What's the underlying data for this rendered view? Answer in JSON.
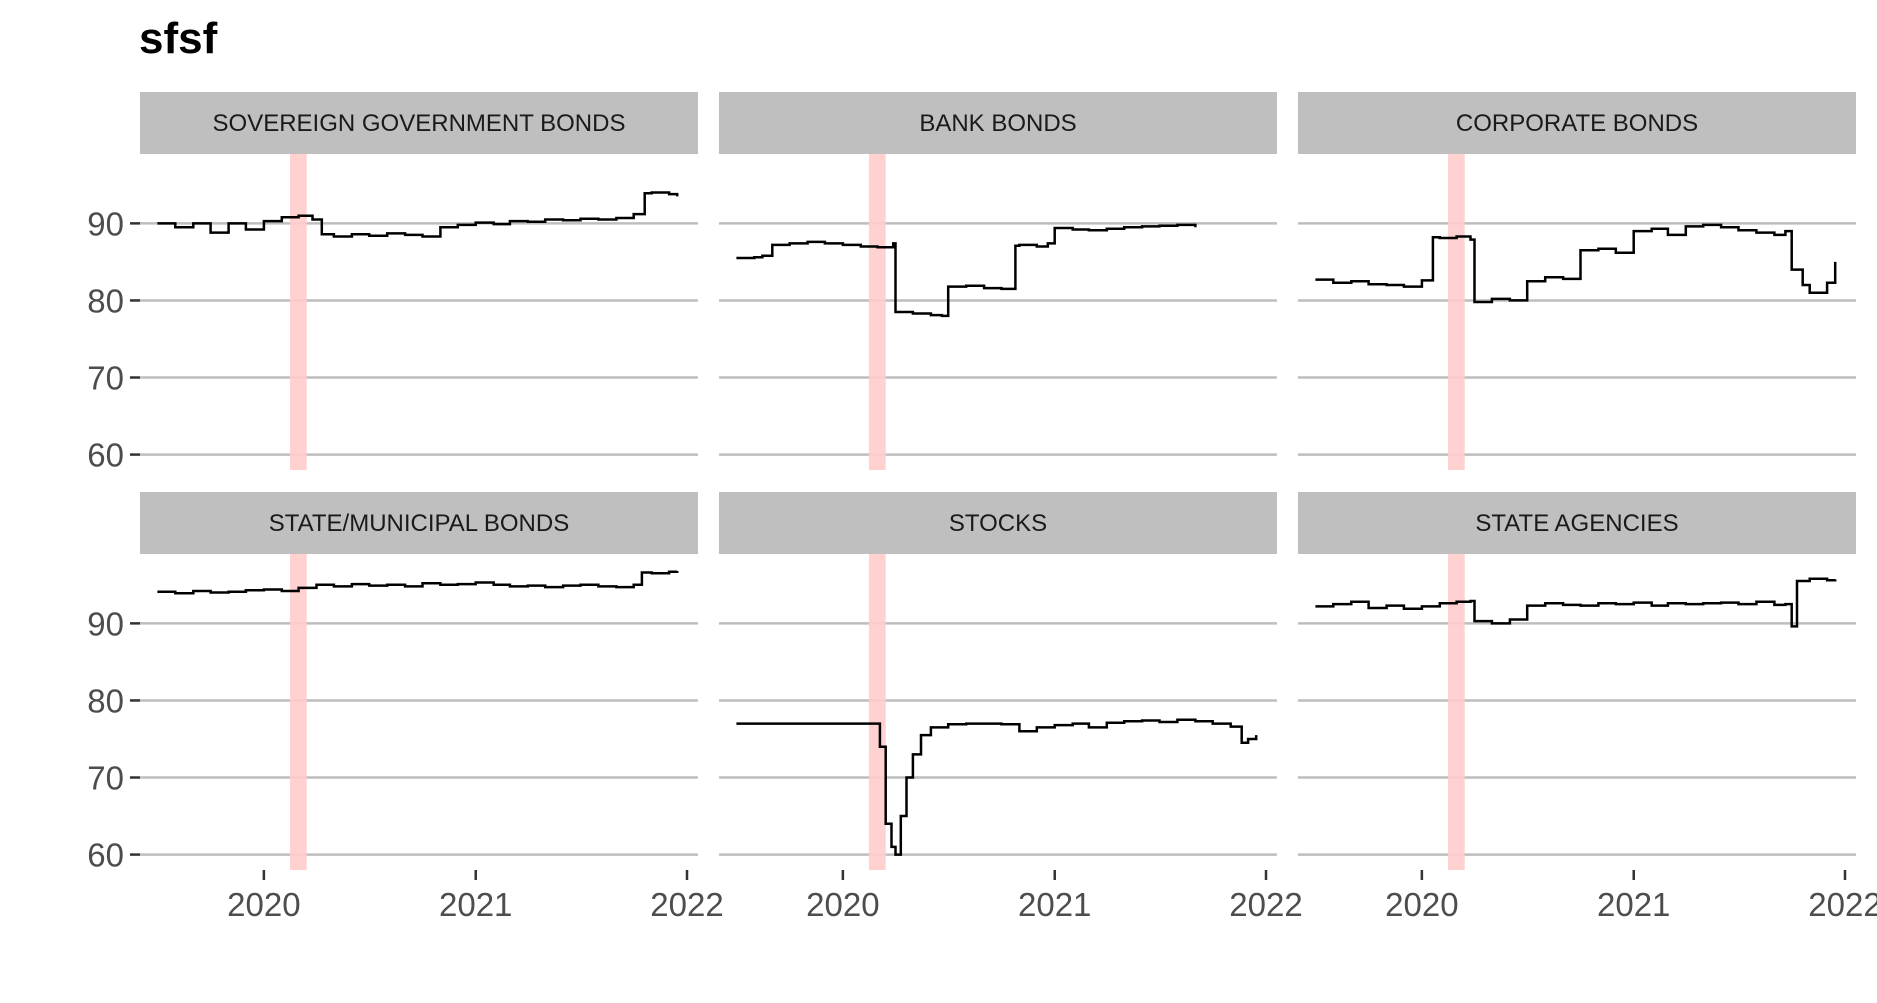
{
  "chart_data": {
    "type": "line",
    "title": "sfsf",
    "xlabel": "",
    "ylabel": "",
    "ylim": [
      58,
      99
    ],
    "xlim": [
      "2019-06-01",
      "2022-01-20"
    ],
    "y_ticks": [
      60,
      70,
      80,
      90
    ],
    "x_ticks": [
      "2020",
      "2021",
      "2022"
    ],
    "grid": "horizontal major gridlines",
    "highlight_band": {
      "from": "2020-02-15",
      "to": "2020-03-15",
      "color": "#ffcccc"
    },
    "line_color": "#000000",
    "strip_color": "#bfbfbf",
    "panels": [
      {
        "name": "SOVEREIGN GOVERNMENT BONDS",
        "x": [
          "2019-07-01",
          "2019-08-01",
          "2019-09-01",
          "2019-10-01",
          "2019-11-01",
          "2019-12-01",
          "2020-01-01",
          "2020-02-01",
          "2020-03-01",
          "2020-03-25",
          "2020-04-10",
          "2020-05-01",
          "2020-06-01",
          "2020-07-01",
          "2020-08-01",
          "2020-09-01",
          "2020-10-01",
          "2020-11-01",
          "2020-12-01",
          "2021-01-01",
          "2021-02-01",
          "2021-03-01",
          "2021-04-01",
          "2021-05-01",
          "2021-06-01",
          "2021-07-01",
          "2021-08-01",
          "2021-09-01",
          "2021-10-01",
          "2021-10-20",
          "2021-11-01",
          "2021-12-01",
          "2021-12-15"
        ],
        "y": [
          90.0,
          89.5,
          90.0,
          88.8,
          90.0,
          89.2,
          90.3,
          90.8,
          91.0,
          90.5,
          88.6,
          88.3,
          88.6,
          88.4,
          88.7,
          88.5,
          88.3,
          89.5,
          89.8,
          90.1,
          89.9,
          90.3,
          90.2,
          90.5,
          90.4,
          90.6,
          90.5,
          90.7,
          91.2,
          93.9,
          94.0,
          93.8,
          93.5
        ]
      },
      {
        "name": "BANK BONDS",
        "x": [
          "2019-07-01",
          "2019-08-01",
          "2019-08-15",
          "2019-09-01",
          "2019-10-01",
          "2019-11-01",
          "2019-12-01",
          "2020-01-01",
          "2020-02-01",
          "2020-03-01",
          "2020-03-28",
          "2020-04-01",
          "2020-05-01",
          "2020-06-01",
          "2020-06-20",
          "2020-07-01",
          "2020-08-01",
          "2020-09-01",
          "2020-10-01",
          "2020-10-25",
          "2020-11-01",
          "2020-12-01",
          "2020-12-20",
          "2021-01-01",
          "2021-02-01",
          "2021-03-01",
          "2021-04-01",
          "2021-05-01",
          "2021-06-01",
          "2021-07-01",
          "2021-08-01",
          "2021-09-01"
        ],
        "y": [
          85.5,
          85.6,
          85.8,
          87.2,
          87.4,
          87.6,
          87.4,
          87.2,
          87.0,
          86.9,
          87.4,
          78.5,
          78.3,
          78.1,
          78.0,
          81.8,
          81.9,
          81.6,
          81.5,
          87.1,
          87.2,
          87.0,
          87.4,
          89.4,
          89.2,
          89.1,
          89.3,
          89.5,
          89.6,
          89.7,
          89.8,
          89.5
        ]
      },
      {
        "name": "CORPORATE BONDS",
        "x": [
          "2019-07-01",
          "2019-08-01",
          "2019-09-01",
          "2019-10-01",
          "2019-11-01",
          "2019-12-01",
          "2020-01-01",
          "2020-01-20",
          "2020-02-01",
          "2020-03-01",
          "2020-03-25",
          "2020-04-01",
          "2020-05-01",
          "2020-06-01",
          "2020-07-01",
          "2020-08-01",
          "2020-09-01",
          "2020-10-01",
          "2020-11-01",
          "2020-12-01",
          "2021-01-01",
          "2021-02-01",
          "2021-03-01",
          "2021-04-01",
          "2021-05-01",
          "2021-06-01",
          "2021-07-01",
          "2021-08-01",
          "2021-09-01",
          "2021-09-20",
          "2021-10-01",
          "2021-10-20",
          "2021-11-01",
          "2021-12-01",
          "2021-12-15"
        ],
        "y": [
          82.7,
          82.3,
          82.5,
          82.1,
          82.0,
          81.8,
          82.6,
          88.2,
          88.1,
          88.3,
          87.9,
          79.8,
          80.2,
          80.0,
          82.5,
          83.0,
          82.8,
          86.5,
          86.7,
          86.2,
          89.0,
          89.3,
          88.5,
          89.6,
          89.8,
          89.5,
          89.1,
          88.8,
          88.5,
          89.0,
          84.0,
          82.0,
          81.0,
          82.3,
          85.0
        ]
      },
      {
        "name": "STATE/MUNICIPAL BONDS",
        "x": [
          "2019-07-01",
          "2019-08-01",
          "2019-09-01",
          "2019-10-01",
          "2019-11-01",
          "2019-12-01",
          "2020-01-01",
          "2020-02-01",
          "2020-03-01",
          "2020-04-01",
          "2020-05-01",
          "2020-06-01",
          "2020-07-01",
          "2020-08-01",
          "2020-09-01",
          "2020-10-01",
          "2020-11-01",
          "2020-12-01",
          "2021-01-01",
          "2021-02-01",
          "2021-03-01",
          "2021-04-01",
          "2021-05-01",
          "2021-06-01",
          "2021-07-01",
          "2021-08-01",
          "2021-09-01",
          "2021-10-01",
          "2021-10-15",
          "2021-11-01",
          "2021-12-01",
          "2021-12-15"
        ],
        "y": [
          94.1,
          93.9,
          94.2,
          94.0,
          94.1,
          94.3,
          94.4,
          94.2,
          94.6,
          95.0,
          94.8,
          95.1,
          94.9,
          95.0,
          94.8,
          95.2,
          95.0,
          95.1,
          95.3,
          95.0,
          94.8,
          94.9,
          94.7,
          94.9,
          95.0,
          94.8,
          94.7,
          95.0,
          96.6,
          96.5,
          96.7,
          96.8
        ]
      },
      {
        "name": "STOCKS",
        "x": [
          "2019-07-01",
          "2019-09-01",
          "2019-11-01",
          "2020-01-01",
          "2020-02-01",
          "2020-02-20",
          "2020-03-05",
          "2020-03-15",
          "2020-03-25",
          "2020-04-01",
          "2020-04-10",
          "2020-04-20",
          "2020-05-01",
          "2020-05-15",
          "2020-06-01",
          "2020-07-01",
          "2020-08-01",
          "2020-09-01",
          "2020-10-01",
          "2020-11-01",
          "2020-12-01",
          "2021-01-01",
          "2021-02-01",
          "2021-03-01",
          "2021-04-01",
          "2021-05-01",
          "2021-06-01",
          "2021-07-01",
          "2021-08-01",
          "2021-09-01",
          "2021-10-01",
          "2021-11-01",
          "2021-11-20",
          "2021-12-01",
          "2021-12-15"
        ],
        "y": [
          77.0,
          77.0,
          77.0,
          77.0,
          77.0,
          77.0,
          74.0,
          64.0,
          61.0,
          60.0,
          65.0,
          70.0,
          73.0,
          75.5,
          76.5,
          76.9,
          77.0,
          77.0,
          76.9,
          76.0,
          76.5,
          76.8,
          77.0,
          76.5,
          77.1,
          77.3,
          77.4,
          77.2,
          77.5,
          77.3,
          77.0,
          76.6,
          74.5,
          75.0,
          75.5
        ]
      },
      {
        "name": "STATE AGENCIES",
        "x": [
          "2019-07-01",
          "2019-08-01",
          "2019-09-01",
          "2019-10-01",
          "2019-11-01",
          "2019-12-01",
          "2020-01-01",
          "2020-02-01",
          "2020-03-01",
          "2020-03-25",
          "2020-04-01",
          "2020-05-01",
          "2020-06-01",
          "2020-07-01",
          "2020-08-01",
          "2020-09-01",
          "2020-10-01",
          "2020-11-01",
          "2020-12-01",
          "2021-01-01",
          "2021-02-01",
          "2021-03-01",
          "2021-04-01",
          "2021-05-01",
          "2021-06-01",
          "2021-07-01",
          "2021-08-01",
          "2021-09-01",
          "2021-09-20",
          "2021-10-01",
          "2021-10-10",
          "2021-11-01",
          "2021-12-01",
          "2021-12-15"
        ],
        "y": [
          92.2,
          92.5,
          92.8,
          92.0,
          92.3,
          91.9,
          92.2,
          92.6,
          92.8,
          92.9,
          90.3,
          90.0,
          90.5,
          92.3,
          92.6,
          92.4,
          92.3,
          92.6,
          92.5,
          92.7,
          92.3,
          92.6,
          92.5,
          92.6,
          92.7,
          92.5,
          92.8,
          92.4,
          92.5,
          89.6,
          95.5,
          95.8,
          95.6,
          95.7
        ]
      }
    ]
  }
}
